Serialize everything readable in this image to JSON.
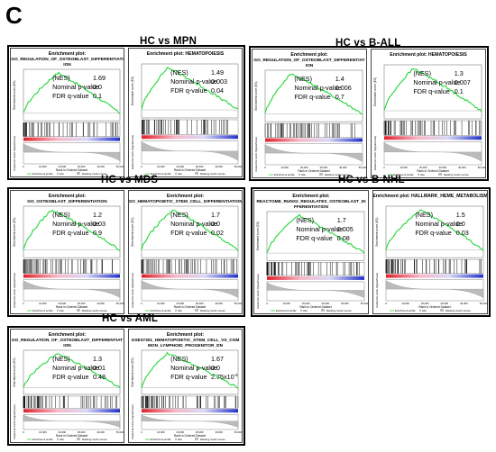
{
  "figure_label": "C",
  "groups": [
    {
      "title": "HC vs MPN",
      "panels": [
        {
          "plot_title": "Enrichment plot:",
          "gene_set": [
            "GO_REGULATION_OF_OSTEOBLAST_DIFFERENTIATI",
            "ION"
          ],
          "nes_label": "(NES)",
          "nes": "1.69",
          "pval_label": "Nominal p-value",
          "pval": "0.0",
          "fdr_label": "FDR q-value",
          "fdr": "0.1"
        },
        {
          "plot_title": "Enrichment plot: HEMATOPOIESIS",
          "gene_set": [],
          "nes_label": "(NES)",
          "nes": "1.49",
          "pval_label": "Nominal p-value",
          "pval": "0.003",
          "fdr_label": "FDR q-value",
          "fdr": "0.04"
        }
      ]
    },
    {
      "title": "HC vs B-ALL",
      "panels": [
        {
          "plot_title": "Enrichment plot:",
          "gene_set": [
            "GO_REGULATION_OF_OSTEOBLAST_DIFFERENTIAT",
            "ION"
          ],
          "nes_label": "(NES)",
          "nes": "1.4",
          "pval_label": "Nominal p-value",
          "pval": "0.006",
          "fdr_label": "FDR q-value",
          "fdr": "0.7"
        },
        {
          "plot_title": "Enrichment plot: HEMATOPOIESIS",
          "gene_set": [],
          "nes_label": "(NES)",
          "nes": "1.3",
          "pval_label": "Nominal p-value",
          "pval": "0.007",
          "fdr_label": "FDR q-value",
          "fdr": "0.1"
        }
      ]
    },
    {
      "title": "HC vs MDS",
      "panels": [
        {
          "plot_title": "Enrichment plot:",
          "gene_set": [
            "GO_OSTEOBLAST_DIFFERENTIATION"
          ],
          "nes_label": "(NES)",
          "nes": "1.2",
          "pval_label": "Nominal p-value",
          "pval": "0.03",
          "fdr_label": "FDR q-value",
          "fdr": "0.9"
        },
        {
          "plot_title": "Enrichment plot:",
          "gene_set": [
            "GO_HEMATOPOIETIC_STEM_CELL_DIFFERENTIATION"
          ],
          "nes_label": "(NES)",
          "nes": "1.7",
          "pval_label": "Nominal p-value",
          "pval": "0.0",
          "fdr_label": "FDR q-value",
          "fdr": "0.02"
        }
      ]
    },
    {
      "title": "HC vs B-NHL",
      "panels": [
        {
          "plot_title": "Enrichment plot:",
          "gene_set": [
            "REACTOME_RUNX2_REGULATES_OSTEOBLAST_DI",
            "FFERENTIATION"
          ],
          "nes_label": "(NES)",
          "nes": "1.7",
          "pval_label": "Nominal p-value",
          "pval": "0.005",
          "fdr_label": "FDR q-value",
          "fdr": "0.08"
        },
        {
          "plot_title": "Enrichment plot: HALLMARK_HEME_METABOLISM",
          "gene_set": [],
          "nes_label": "(NES)",
          "nes": "1.5",
          "pval_label": "Nominal p-value",
          "pval": "0.0",
          "fdr_label": "FDR q-value",
          "fdr": "0.03"
        }
      ]
    },
    {
      "title": "HC vs AML",
      "panels": [
        {
          "plot_title": "Enrichment plot:",
          "gene_set": [
            "GO_REGULATION_OF_OSTEOBLAST_DIFFERENTIAT",
            "ION"
          ],
          "nes_label": "(NES)",
          "nes": "1.3",
          "pval_label": "Nominal p-value",
          "pval": "0.01",
          "fdr_label": "FDR q-value",
          "fdr": "0.48"
        },
        {
          "plot_title": "Enrichment plot:",
          "gene_set": [
            "GSE37301_HEMATOPOIETIC_STEM_CELL_VS_COM",
            "MON_LYMPHOID_PROGENITOR_DN"
          ],
          "nes_label": "(NES)",
          "nes": "1.67",
          "pval_label": "Nominal p-value",
          "pval": "0.0",
          "fdr_label": "FDR q-value",
          "fdr": "2.75x10",
          "fdr_exp": "-6"
        }
      ]
    }
  ],
  "axis_labels": {
    "es": "Enrichment score (ES)",
    "rank_x": "Rank in Ordered Dataset",
    "ranked_list": "Ranked list metric (Signal2Noise)"
  },
  "ticks_x": [
    "0",
    "10,000",
    "20,000",
    "30,000",
    "40,000",
    "50,000"
  ],
  "legend": {
    "profile": "Enrichment profile",
    "hits": "Hits",
    "metric": "Ranking metric scores"
  },
  "colors": {
    "curve": "#22d63a",
    "red": "#e0202a",
    "blue": "#2230c8",
    "frame": "#000000"
  }
}
